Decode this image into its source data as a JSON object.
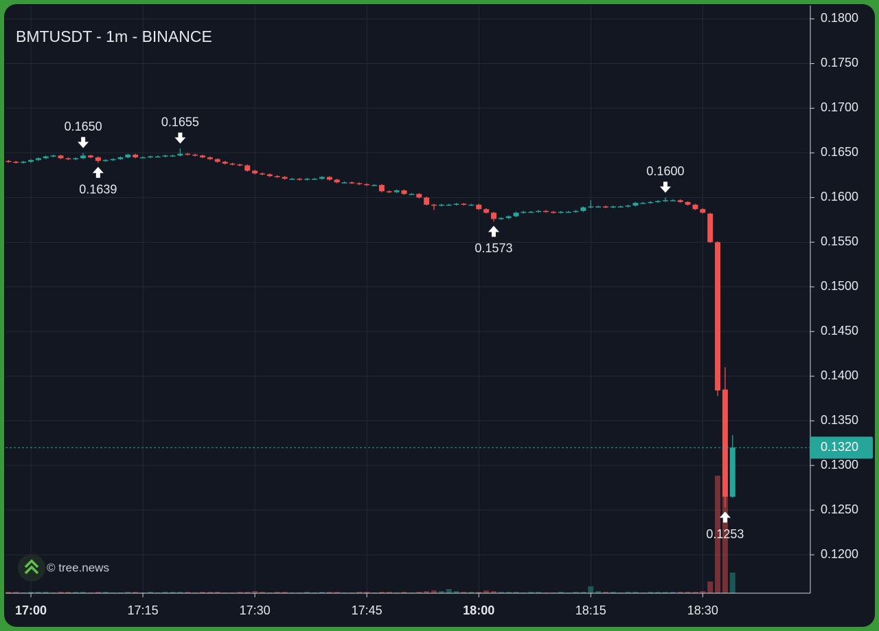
{
  "chart_data": {
    "type": "candlestick",
    "title": "BMTUSDT - 1m - BINANCE",
    "watermark": "© tree.news",
    "x": [
      "16:57",
      "16:58",
      "16:59",
      "17:00",
      "17:01",
      "17:02",
      "17:03",
      "17:04",
      "17:05",
      "17:06",
      "17:07",
      "17:08",
      "17:09",
      "17:10",
      "17:11",
      "17:12",
      "17:13",
      "17:14",
      "17:15",
      "17:16",
      "17:17",
      "17:18",
      "17:19",
      "17:20",
      "17:21",
      "17:22",
      "17:23",
      "17:24",
      "17:25",
      "17:26",
      "17:27",
      "17:28",
      "17:29",
      "17:30",
      "17:31",
      "17:32",
      "17:33",
      "17:34",
      "17:35",
      "17:36",
      "17:37",
      "17:38",
      "17:39",
      "17:40",
      "17:41",
      "17:42",
      "17:43",
      "17:44",
      "17:45",
      "17:46",
      "17:47",
      "17:48",
      "17:49",
      "17:50",
      "17:51",
      "17:52",
      "17:53",
      "17:54",
      "17:55",
      "17:56",
      "17:57",
      "17:58",
      "17:59",
      "18:00",
      "18:01",
      "18:02",
      "18:03",
      "18:04",
      "18:05",
      "18:06",
      "18:07",
      "18:08",
      "18:09",
      "18:10",
      "18:11",
      "18:12",
      "18:13",
      "18:14",
      "18:15",
      "18:16",
      "18:17",
      "18:18",
      "18:19",
      "18:20",
      "18:21",
      "18:22",
      "18:23",
      "18:24",
      "18:25",
      "18:26",
      "18:27",
      "18:28",
      "18:29",
      "18:30",
      "18:31",
      "18:32",
      "18:33",
      "18:34"
    ],
    "open": [
      0.1641,
      0.164,
      0.1639,
      0.164,
      0.1642,
      0.1644,
      0.1646,
      0.1647,
      0.1644,
      0.1643,
      0.1644,
      0.1647,
      0.1645,
      0.1641,
      0.1642,
      0.1643,
      0.1645,
      0.1648,
      0.1645,
      0.1645,
      0.1646,
      0.1646,
      0.1647,
      0.1647,
      0.1649,
      0.1648,
      0.1647,
      0.1645,
      0.1643,
      0.164,
      0.1638,
      0.1637,
      0.1636,
      0.163,
      0.1627,
      0.1626,
      0.1624,
      0.1623,
      0.1621,
      0.1621,
      0.162,
      0.1621,
      0.1621,
      0.1623,
      0.162,
      0.1617,
      0.1617,
      0.1616,
      0.1615,
      0.1614,
      0.1614,
      0.1607,
      0.1606,
      0.1608,
      0.1604,
      0.1604,
      0.16,
      0.1592,
      0.1591,
      0.1592,
      0.1592,
      0.1593,
      0.1592,
      0.1592,
      0.1587,
      0.1583,
      0.1576,
      0.1577,
      0.1579,
      0.1583,
      0.1584,
      0.1584,
      0.1585,
      0.1584,
      0.1583,
      0.1584,
      0.1584,
      0.1585,
      0.1589,
      0.159,
      0.159,
      0.1589,
      0.159,
      0.159,
      0.1591,
      0.1594,
      0.1594,
      0.1595,
      0.1596,
      0.1597,
      0.1597,
      0.1595,
      0.1592,
      0.1587,
      0.1582,
      0.155,
      0.1385,
      0.1265
    ],
    "high": [
      0.1642,
      0.1641,
      0.1641,
      0.1643,
      0.1645,
      0.1647,
      0.1648,
      0.1648,
      0.1645,
      0.1645,
      0.165,
      0.1648,
      0.1646,
      0.1643,
      0.1644,
      0.1646,
      0.1649,
      0.1649,
      0.1646,
      0.1647,
      0.1647,
      0.1648,
      0.1648,
      0.1655,
      0.165,
      0.1649,
      0.1648,
      0.1646,
      0.1644,
      0.1641,
      0.1639,
      0.1638,
      0.1637,
      0.1631,
      0.1628,
      0.1627,
      0.1625,
      0.1624,
      0.1622,
      0.1622,
      0.1622,
      0.1622,
      0.1624,
      0.1624,
      0.1621,
      0.1618,
      0.1618,
      0.1617,
      0.1616,
      0.1615,
      0.1615,
      0.1608,
      0.1609,
      0.1609,
      0.1605,
      0.1605,
      0.1601,
      0.1593,
      0.1593,
      0.1593,
      0.1594,
      0.1594,
      0.1593,
      0.1593,
      0.1588,
      0.1584,
      0.1578,
      0.158,
      0.1584,
      0.1585,
      0.1585,
      0.1586,
      0.1586,
      0.1585,
      0.1585,
      0.1585,
      0.1586,
      0.159,
      0.1597,
      0.1591,
      0.1591,
      0.1591,
      0.1591,
      0.1592,
      0.1595,
      0.1595,
      0.1596,
      0.1597,
      0.16,
      0.1598,
      0.1598,
      0.1596,
      0.1593,
      0.1588,
      0.1583,
      0.1551,
      0.141,
      0.1334
    ],
    "low": [
      0.1639,
      0.1638,
      0.1638,
      0.1639,
      0.1641,
      0.1643,
      0.1645,
      0.1643,
      0.1642,
      0.1642,
      0.1643,
      0.1644,
      0.1639,
      0.164,
      0.1641,
      0.1642,
      0.1644,
      0.1644,
      0.1644,
      0.1644,
      0.1645,
      0.1645,
      0.1646,
      0.1646,
      0.1647,
      0.1646,
      0.1644,
      0.1642,
      0.1639,
      0.1637,
      0.1636,
      0.1635,
      0.1629,
      0.1626,
      0.1625,
      0.1623,
      0.1622,
      0.162,
      0.162,
      0.1619,
      0.1619,
      0.162,
      0.162,
      0.1619,
      0.1616,
      0.1616,
      0.1615,
      0.1614,
      0.1613,
      0.1613,
      0.1606,
      0.1605,
      0.1605,
      0.1603,
      0.1603,
      0.1599,
      0.1591,
      0.1586,
      0.159,
      0.1591,
      0.1591,
      0.1591,
      0.1591,
      0.1586,
      0.1582,
      0.1573,
      0.1575,
      0.1576,
      0.1578,
      0.1582,
      0.1583,
      0.1583,
      0.1583,
      0.1582,
      0.1582,
      0.1583,
      0.1583,
      0.1584,
      0.1588,
      0.1589,
      0.1588,
      0.1588,
      0.1589,
      0.1589,
      0.159,
      0.1593,
      0.1593,
      0.1594,
      0.1595,
      0.1596,
      0.1594,
      0.1591,
      0.1586,
      0.1582,
      0.1549,
      0.1378,
      0.1253,
      0.1264
    ],
    "close": [
      0.164,
      0.1639,
      0.164,
      0.1642,
      0.1644,
      0.1646,
      0.1647,
      0.1644,
      0.1643,
      0.1644,
      0.1647,
      0.1645,
      0.1641,
      0.1642,
      0.1643,
      0.1645,
      0.1648,
      0.1645,
      0.1645,
      0.1646,
      0.1646,
      0.1647,
      0.1647,
      0.1649,
      0.1648,
      0.1647,
      0.1645,
      0.1643,
      0.164,
      0.1638,
      0.1637,
      0.1636,
      0.163,
      0.1627,
      0.1626,
      0.1624,
      0.1623,
      0.1621,
      0.1621,
      0.162,
      0.1621,
      0.1621,
      0.1623,
      0.162,
      0.1617,
      0.1617,
      0.1616,
      0.1615,
      0.1614,
      0.1614,
      0.1607,
      0.1606,
      0.1608,
      0.1604,
      0.1604,
      0.16,
      0.1592,
      0.1591,
      0.1592,
      0.1592,
      0.1593,
      0.1592,
      0.1592,
      0.1587,
      0.1583,
      0.1576,
      0.1577,
      0.1579,
      0.1583,
      0.1584,
      0.1584,
      0.1585,
      0.1584,
      0.1583,
      0.1584,
      0.1584,
      0.1585,
      0.1589,
      0.159,
      0.159,
      0.1589,
      0.159,
      0.159,
      0.1591,
      0.1594,
      0.1594,
      0.1595,
      0.1596,
      0.1597,
      0.1597,
      0.1595,
      0.1592,
      0.1587,
      0.1583,
      0.155,
      0.1384,
      0.1265,
      0.132
    ],
    "volume": [
      2,
      2,
      1,
      2,
      2,
      2,
      1,
      2,
      2,
      2,
      2,
      1,
      2,
      2,
      1,
      1,
      2,
      2,
      1,
      2,
      1,
      2,
      2,
      2,
      2,
      1,
      2,
      2,
      2,
      1,
      1,
      2,
      2,
      3,
      2,
      1,
      2,
      2,
      1,
      1,
      2,
      1,
      2,
      2,
      2,
      1,
      1,
      2,
      2,
      1,
      2,
      2,
      1,
      2,
      1,
      2,
      3,
      4,
      3,
      6,
      3,
      2,
      2,
      2,
      4,
      3,
      2,
      2,
      2,
      1,
      2,
      2,
      1,
      1,
      2,
      1,
      2,
      2,
      10,
      3,
      2,
      2,
      1,
      2,
      2,
      1,
      2,
      2,
      2,
      2,
      2,
      2,
      2,
      3,
      17,
      171,
      160,
      30
    ],
    "up_color": "#26a69a",
    "down_color": "#ef5350",
    "ylim": [
      0.1157,
      0.1815
    ],
    "yticks": [
      {
        "value": 0.12,
        "label": "0.1200"
      },
      {
        "value": 0.125,
        "label": "0.1250"
      },
      {
        "value": 0.13,
        "label": "0.1300"
      },
      {
        "value": 0.135,
        "label": "0.1350"
      },
      {
        "value": 0.14,
        "label": "0.1400"
      },
      {
        "value": 0.145,
        "label": "0.1450"
      },
      {
        "value": 0.15,
        "label": "0.1500"
      },
      {
        "value": 0.155,
        "label": "0.1550"
      },
      {
        "value": 0.16,
        "label": "0.1600"
      },
      {
        "value": 0.165,
        "label": "0.1650"
      },
      {
        "value": 0.17,
        "label": "0.1700"
      },
      {
        "value": 0.175,
        "label": "0.1750"
      },
      {
        "value": 0.18,
        "label": "0.1800"
      }
    ],
    "xticks": [
      "17:00",
      "17:15",
      "17:30",
      "17:45",
      "18:00",
      "18:15",
      "18:30"
    ],
    "grid": true,
    "last_price": {
      "value": 0.132,
      "label": "0.1320"
    },
    "annotations": [
      {
        "x": "17:07",
        "value": 0.165,
        "label": "0.1650",
        "position": "above"
      },
      {
        "x": "17:09",
        "value": 0.1639,
        "label": "0.1639",
        "position": "below"
      },
      {
        "x": "17:20",
        "value": 0.1655,
        "label": "0.1655",
        "position": "above"
      },
      {
        "x": "18:02",
        "value": 0.1573,
        "label": "0.1573",
        "position": "below"
      },
      {
        "x": "18:25",
        "value": 0.16,
        "label": "0.1600",
        "position": "above"
      },
      {
        "x": "18:33",
        "value": 0.1253,
        "label": "0.1253",
        "position": "below"
      }
    ]
  }
}
